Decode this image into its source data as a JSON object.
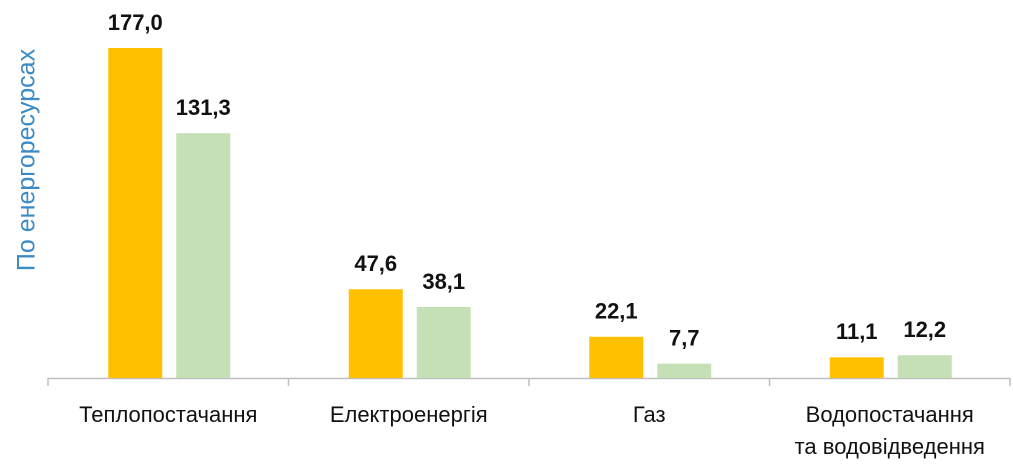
{
  "chart_data": {
    "type": "bar",
    "y_label": "По енергоресурсах",
    "categories": [
      "Теплопостачання",
      "Електроенергія",
      "Газ",
      "Водопостачання та водовідведення"
    ],
    "series": [
      {
        "color": "#ffc000",
        "values": [
          177.0,
          47.6,
          22.1,
          11.1
        ],
        "value_labels": [
          "177,0",
          "47,6",
          "22,1",
          "11,1"
        ]
      },
      {
        "color": "#c5e0b4",
        "values": [
          131.3,
          38.1,
          7.7,
          12.2
        ],
        "value_labels": [
          "131,3",
          "38,1",
          "7,7",
          "12,2"
        ]
      }
    ],
    "ylim": [
      0,
      180
    ]
  }
}
